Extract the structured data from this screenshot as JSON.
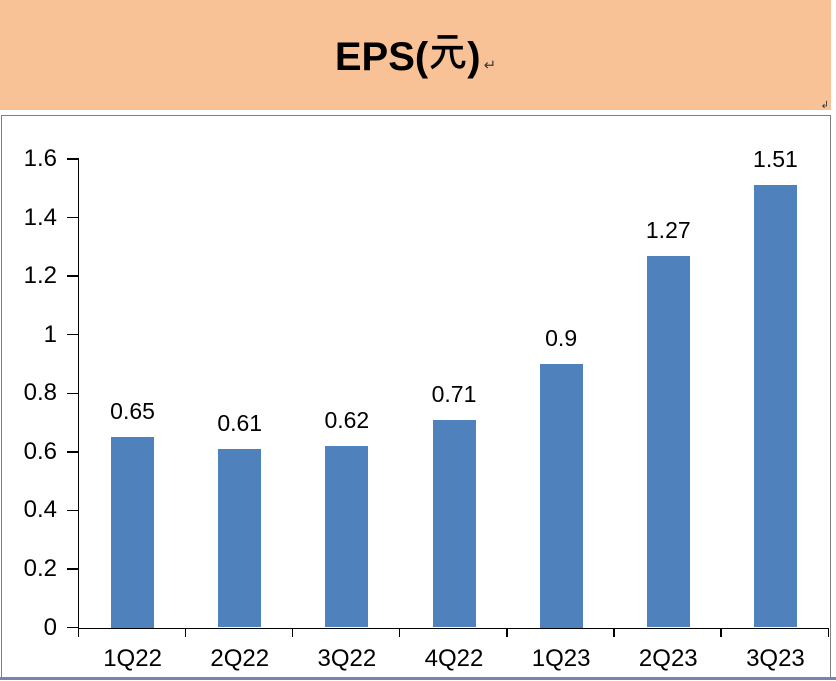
{
  "header": {
    "title": "EPS(元)",
    "inline_return_mark": "↵",
    "corner_mark": "↲"
  },
  "chart_data": {
    "type": "bar",
    "title": "EPS(元)",
    "categories": [
      "1Q22",
      "2Q22",
      "3Q22",
      "4Q22",
      "1Q23",
      "2Q23",
      "3Q23"
    ],
    "values": [
      0.65,
      0.61,
      0.62,
      0.71,
      0.9,
      1.27,
      1.51
    ],
    "data_labels": [
      "0.65",
      "0.61",
      "0.62",
      "0.71",
      "0.9",
      "1.27",
      "1.51"
    ],
    "xlabel": "",
    "ylabel": "",
    "ylim": [
      0,
      1.6
    ],
    "yticks": [
      0,
      0.2,
      0.4,
      0.6,
      0.8,
      1,
      1.2,
      1.4,
      1.6
    ],
    "ytick_labels": [
      "0",
      "0.2",
      "0.4",
      "0.6",
      "0.8",
      "1",
      "1.2",
      "1.4",
      "1.6"
    ],
    "grid": false,
    "legend": "none",
    "bar_color": "#4F81BD"
  },
  "colors": {
    "banner_bg": "#F8C296",
    "bar": "#4F81BD",
    "frame_border": "#7F7F7F",
    "axis": "#000000",
    "bottom_rule": "#7487A8",
    "text": "#000000"
  }
}
